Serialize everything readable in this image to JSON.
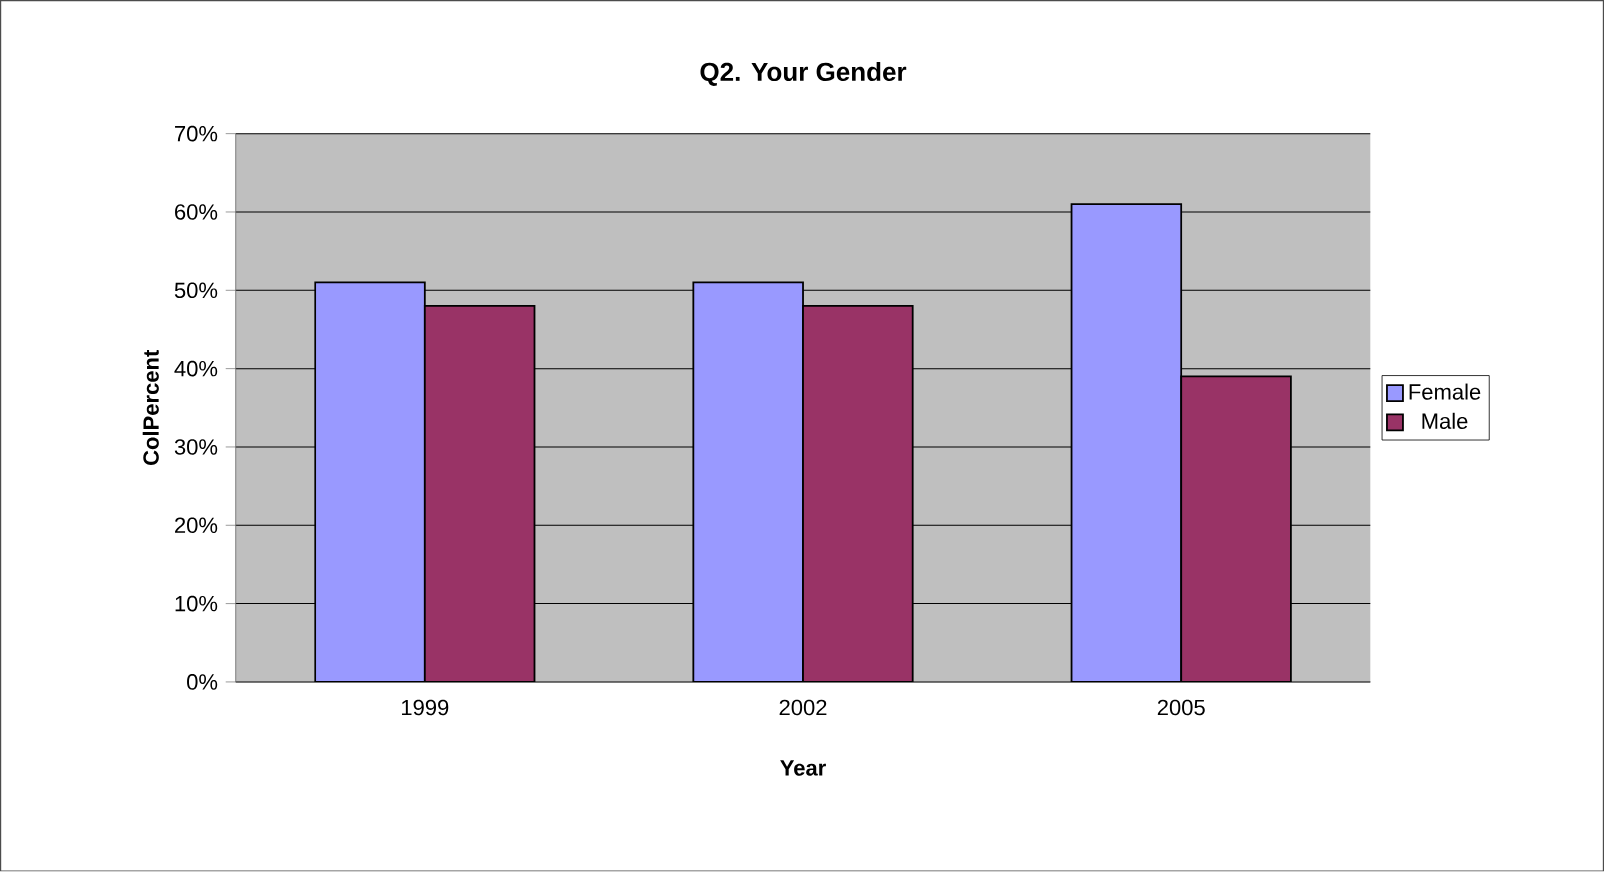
{
  "chart_data": {
    "type": "bar",
    "title": "Q2. Your Gender",
    "xlabel": "Year",
    "ylabel": "ColPercent",
    "categories": [
      "1999",
      "2002",
      "2005"
    ],
    "series": [
      {
        "name": "Female",
        "color": "#9999ff",
        "values": [
          51,
          51,
          61
        ]
      },
      {
        "name": "Male",
        "color": "#993366",
        "values": [
          48,
          48,
          39
        ]
      }
    ],
    "ylim": [
      0,
      70
    ],
    "yticks": [
      {
        "value": 0,
        "label": "0%"
      },
      {
        "value": 10,
        "label": "10%"
      },
      {
        "value": 20,
        "label": "20%"
      },
      {
        "value": 30,
        "label": "30%"
      },
      {
        "value": 40,
        "label": "40%"
      },
      {
        "value": 50,
        "label": "50%"
      },
      {
        "value": 60,
        "label": "60%"
      },
      {
        "value": 70,
        "label": "70%"
      }
    ],
    "grid": "y",
    "legend": "right"
  }
}
